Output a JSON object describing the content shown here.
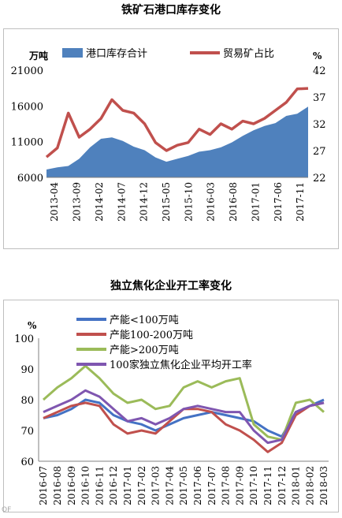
{
  "chart_data": [
    {
      "type": "area",
      "title": "铁矿石港口库存变化",
      "ylabel_left": "万吨",
      "ylabel_right": "%",
      "ylim_left": [
        6000,
        21000
      ],
      "yticks_left": [
        6000,
        11000,
        16000,
        21000
      ],
      "ylim_right": [
        22,
        42
      ],
      "yticks_right": [
        22,
        27,
        32,
        37,
        42
      ],
      "x_ticks": [
        "2013-04",
        "2013-09",
        "2014-02",
        "2014-07",
        "2014-12",
        "2015-05",
        "2015-10",
        "2016-03",
        "2016-08",
        "2017-01",
        "2017-06",
        "2017-11"
      ],
      "legend_position": "top",
      "grid": false,
      "x": [
        "2013-04",
        "2013-06",
        "2013-09",
        "2013-12",
        "2014-02",
        "2014-04",
        "2014-07",
        "2014-09",
        "2014-12",
        "2015-03",
        "2015-05",
        "2015-08",
        "2015-10",
        "2015-12",
        "2016-03",
        "2016-05",
        "2016-08",
        "2016-10",
        "2017-01",
        "2017-03",
        "2017-06",
        "2017-08",
        "2017-11",
        "2018-01",
        "2018-03"
      ],
      "series": [
        {
          "name": "港口库存合计",
          "axis": "left",
          "color": "#4f81bd",
          "values": [
            7100,
            7400,
            7600,
            8600,
            10200,
            11400,
            11600,
            11100,
            10300,
            9800,
            8800,
            8200,
            8600,
            9000,
            9600,
            9800,
            10200,
            10900,
            11800,
            12600,
            13200,
            13600,
            14600,
            14900,
            15900
          ]
        },
        {
          "name": "贸易矿占比",
          "axis": "right",
          "color": "#c0504d",
          "values": [
            25.8,
            27.5,
            34,
            29.5,
            31,
            33,
            36.5,
            34.5,
            34,
            32,
            28.5,
            27,
            28,
            28.5,
            31,
            30,
            32,
            31,
            32.5,
            32,
            33,
            34.5,
            36,
            38.5,
            38.6
          ]
        }
      ]
    },
    {
      "type": "line",
      "title": "独立焦化企业开工率变化",
      "ylabel": "%",
      "ylim": [
        60,
        100
      ],
      "yticks": [
        60,
        70,
        80,
        90,
        100
      ],
      "x": [
        "2016-07",
        "2016-08",
        "2016-09",
        "2016-10",
        "2016-11",
        "2016-12",
        "2017-01",
        "2017-02",
        "2017-03",
        "2017-04",
        "2017-05",
        "2017-06",
        "2017-07",
        "2017-08",
        "2017-09",
        "2017-10",
        "2017-11",
        "2017-12",
        "2018-01",
        "2018-02",
        "2018-03"
      ],
      "legend_position": "top",
      "grid": false,
      "series": [
        {
          "name": "产能<100万吨",
          "color": "#4472c4",
          "values": [
            74,
            75,
            77,
            80,
            79,
            75,
            73,
            72,
            70,
            72,
            74,
            75,
            76,
            75,
            74,
            73,
            70,
            68,
            76,
            78,
            80
          ]
        },
        {
          "name": "产能100-200万吨",
          "color": "#c0504d",
          "values": [
            74,
            76,
            78,
            79,
            78,
            72,
            69,
            70,
            69,
            73,
            77,
            77,
            76,
            72,
            70,
            67,
            63,
            66,
            75,
            78,
            79
          ]
        },
        {
          "name": "产能>200万吨",
          "color": "#9bbb59",
          "values": [
            80,
            84,
            87,
            91,
            87,
            82,
            79,
            80,
            77,
            78,
            84,
            86,
            84,
            86,
            87,
            72,
            68,
            67,
            79,
            80,
            76
          ]
        },
        {
          "name": "100家独立焦化企业平均开工率",
          "color": "#7f56b0",
          "values": [
            76,
            78,
            80,
            83,
            81,
            77,
            73,
            74,
            72,
            74,
            77,
            78,
            77,
            76,
            76,
            70,
            66,
            67,
            76,
            78,
            79
          ]
        }
      ]
    }
  ],
  "watermark": "OF"
}
